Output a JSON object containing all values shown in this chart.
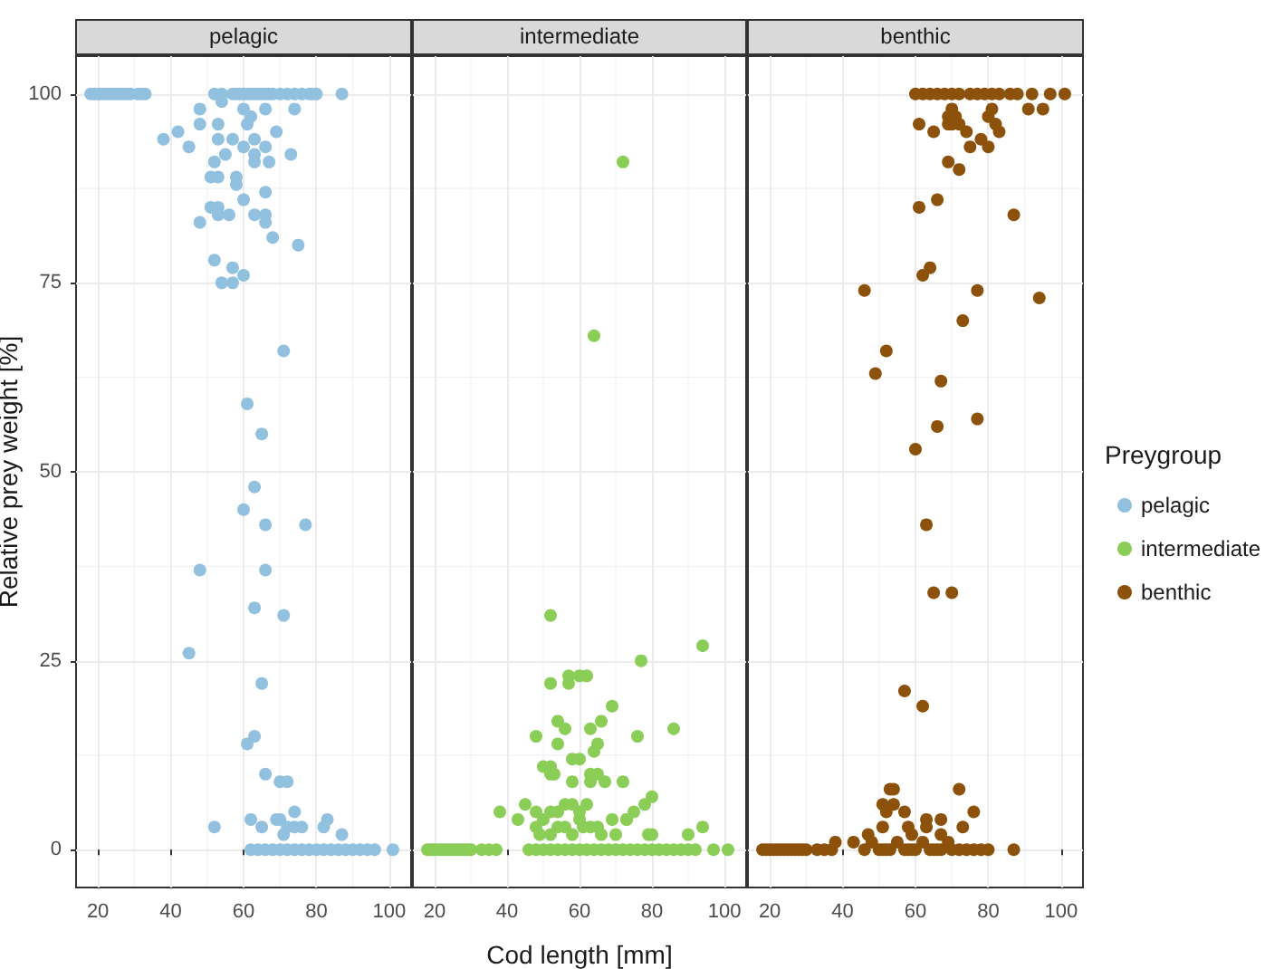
{
  "chart_data": [
    {
      "type": "scatter",
      "title": "pelagic",
      "ylabel": "Relative prey weight [%]",
      "xlim": [
        14,
        106
      ],
      "xticks": [
        20,
        40,
        60,
        80,
        100
      ],
      "ylim": [
        -5,
        105
      ],
      "yticks": [
        0,
        25,
        50,
        75,
        100
      ],
      "grid": true,
      "marker": "circle",
      "legend": "right",
      "legend_title": "Preygroup",
      "series": [
        {
          "name": "pelagic",
          "color": "#92c0df",
          "x": [
            18,
            19,
            20,
            21,
            22,
            23,
            24,
            25,
            26,
            27,
            28,
            29,
            31,
            32,
            33,
            52,
            54,
            57,
            58,
            59,
            60,
            61,
            62,
            63,
            64,
            65,
            66,
            67,
            68,
            70,
            72,
            74,
            76,
            78,
            79,
            80,
            87,
            48,
            54,
            60,
            66,
            74,
            48,
            53,
            61,
            62,
            42,
            38,
            45,
            53,
            57,
            60,
            63,
            69,
            73,
            66,
            63,
            63,
            67,
            55,
            52,
            58,
            51,
            53,
            58,
            66,
            60,
            51,
            53,
            63,
            66,
            48,
            53,
            56,
            66,
            68,
            75,
            52,
            57,
            54,
            57,
            60,
            71,
            61,
            65,
            63,
            60,
            66,
            77,
            48,
            66,
            63,
            71,
            45,
            65,
            61,
            63,
            66,
            70,
            72,
            52,
            62,
            65,
            69,
            70,
            71,
            72,
            74,
            74,
            76,
            82,
            83,
            87,
            62,
            64,
            66,
            68,
            70,
            72,
            74,
            76,
            78,
            80,
            82,
            84,
            86,
            88,
            90,
            92,
            94,
            96,
            101
          ],
          "values": [
            100,
            100,
            100,
            100,
            100,
            100,
            100,
            100,
            100,
            100,
            100,
            100,
            100,
            100,
            100,
            100,
            100,
            100,
            100,
            100,
            100,
            100,
            100,
            100,
            100,
            100,
            100,
            100,
            100,
            100,
            100,
            100,
            100,
            100,
            100,
            100,
            100,
            98,
            99,
            98,
            98,
            98,
            96,
            96,
            96,
            97,
            95,
            94,
            93,
            94,
            94,
            93,
            94,
            95,
            92,
            93,
            92,
            91,
            91,
            92,
            91,
            89,
            89,
            89,
            88,
            87,
            86,
            85,
            85,
            84,
            84,
            83,
            84,
            84,
            83,
            81,
            80,
            78,
            77,
            75,
            75,
            76,
            66,
            59,
            55,
            48,
            45,
            43,
            43,
            37,
            37,
            32,
            31,
            26,
            22,
            14,
            15,
            10,
            9,
            9,
            3,
            4,
            3,
            4,
            4,
            2,
            3,
            5,
            3,
            3,
            3,
            4,
            2,
            0,
            0,
            0,
            0,
            0,
            0,
            0,
            0,
            0,
            0,
            0,
            0,
            0,
            0,
            0,
            0,
            0,
            0,
            0
          ]
        }
      ]
    },
    {
      "type": "scatter",
      "title": "intermediate",
      "xlabel": "Cod length [mm]",
      "xlim": [
        14,
        106
      ],
      "xticks": [
        20,
        40,
        60,
        80,
        100
      ],
      "ylim": [
        -5,
        105
      ],
      "yticks": [
        0,
        25,
        50,
        75,
        100
      ],
      "grid": true,
      "marker": "circle",
      "tick_labels": "x",
      "legend": "right",
      "series": [
        {
          "name": "intermediate",
          "color": "#8acd57",
          "x": [
            72,
            64,
            52,
            94,
            77,
            57,
            60,
            62,
            52,
            57,
            69,
            66,
            86,
            54,
            56,
            63,
            48,
            76,
            65,
            64,
            54,
            58,
            60,
            50,
            52,
            63,
            63,
            52,
            53,
            58,
            65,
            67,
            72,
            80,
            78,
            75,
            73,
            38,
            43,
            45,
            48,
            50,
            52,
            54,
            56,
            58,
            60,
            62,
            48,
            49,
            52,
            54,
            56,
            58,
            60,
            61,
            63,
            65,
            66,
            69,
            70,
            73,
            79,
            80,
            90,
            94,
            18,
            19,
            20,
            21,
            22,
            23,
            24,
            25,
            26,
            27,
            28,
            29,
            30,
            33,
            35,
            37,
            46,
            48,
            50,
            52,
            54,
            56,
            58,
            60,
            62,
            64,
            66,
            68,
            70,
            72,
            74,
            76,
            78,
            80,
            82,
            84,
            86,
            88,
            90,
            92,
            97,
            101
          ],
          "values": [
            91,
            68,
            31,
            27,
            25,
            23,
            23,
            23,
            22,
            22,
            19,
            17,
            16,
            17,
            16,
            16,
            15,
            15,
            14,
            13,
            14,
            12,
            12,
            11,
            11,
            10,
            9,
            10,
            10,
            9,
            10,
            9,
            9,
            7,
            6,
            5,
            4,
            5,
            4,
            6,
            5,
            4,
            5,
            5,
            6,
            6,
            5,
            6,
            3,
            2,
            2,
            3,
            3,
            2,
            4,
            3,
            3,
            3,
            2,
            4,
            2,
            4,
            2,
            2,
            2,
            3,
            0,
            0,
            0,
            0,
            0,
            0,
            0,
            0,
            0,
            0,
            0,
            0,
            0,
            0,
            0,
            0,
            0,
            0,
            0,
            0,
            0,
            0,
            0,
            0,
            0,
            0,
            0,
            0,
            0,
            0,
            0,
            0,
            0,
            0,
            0,
            0,
            0,
            0,
            0,
            0,
            0,
            0
          ]
        }
      ]
    },
    {
      "type": "scatter",
      "title": "benthic",
      "xlim": [
        14,
        106
      ],
      "xticks": [
        20,
        40,
        60,
        80,
        100
      ],
      "ylim": [
        -5,
        105
      ],
      "yticks": [
        0,
        25,
        50,
        75,
        100
      ],
      "grid": true,
      "marker": "circle",
      "tick_labels": "x",
      "legend": "right",
      "series": [
        {
          "name": "benthic",
          "color": "#8c510a",
          "x": [
            60,
            62,
            64,
            66,
            68,
            70,
            72,
            75,
            77,
            79,
            81,
            83,
            86,
            88,
            92,
            97,
            101,
            70,
            71,
            69,
            80,
            81,
            91,
            95,
            61,
            65,
            69,
            70,
            72,
            74,
            82,
            83,
            78,
            75,
            80,
            69,
            72,
            66,
            61,
            87,
            64,
            62,
            46,
            77,
            94,
            73,
            52,
            49,
            67,
            66,
            77,
            60,
            63,
            65,
            70,
            57,
            62,
            53,
            54,
            54,
            51,
            72,
            57,
            52,
            76,
            67,
            63,
            73,
            51,
            58,
            63,
            38,
            43,
            47,
            48,
            55,
            59,
            62,
            67,
            69,
            18,
            19,
            20,
            21,
            22,
            23,
            24,
            25,
            26,
            27,
            28,
            29,
            30,
            33,
            35,
            37,
            46,
            50,
            51,
            52,
            53,
            57,
            58,
            59,
            60,
            64,
            65,
            66,
            67,
            70,
            72,
            74,
            76,
            78,
            80,
            87
          ],
          "values": [
            100,
            100,
            100,
            100,
            100,
            100,
            100,
            100,
            100,
            100,
            100,
            100,
            100,
            100,
            100,
            100,
            100,
            98,
            97,
            97,
            97,
            98,
            98,
            98,
            96,
            95,
            96,
            96,
            96,
            95,
            96,
            95,
            94,
            93,
            93,
            91,
            90,
            86,
            85,
            84,
            77,
            76,
            74,
            74,
            73,
            70,
            66,
            63,
            62,
            56,
            57,
            53,
            43,
            34,
            34,
            21,
            19,
            8,
            8,
            6,
            6,
            8,
            5,
            5,
            5,
            4,
            3,
            3,
            3,
            3,
            4,
            1,
            1,
            2,
            1,
            1,
            2,
            1,
            2,
            1,
            0,
            0,
            0,
            0,
            0,
            0,
            0,
            0,
            0,
            0,
            0,
            0,
            0,
            0,
            0,
            0,
            0,
            0,
            0,
            0,
            0,
            0,
            0,
            0,
            0,
            0,
            0,
            0,
            0,
            0,
            0,
            0,
            0,
            0,
            0,
            0
          ]
        }
      ]
    }
  ]
}
